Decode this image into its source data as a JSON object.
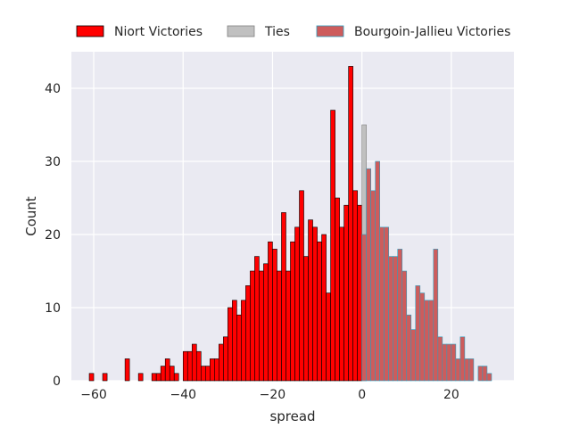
{
  "chart_data": {
    "type": "bar",
    "subtype": "histogram",
    "title": "",
    "xlabel": "spread",
    "ylabel": "Count",
    "xlim": [
      -65,
      34
    ],
    "ylim": [
      0,
      45
    ],
    "xticks": [
      -60,
      -40,
      -20,
      0,
      20
    ],
    "yticks": [
      0,
      10,
      20,
      30,
      40
    ],
    "grid": true,
    "legend_position": "top, outside plot, horizontal",
    "bin_width": 1,
    "series": [
      {
        "name": "Niort Victories",
        "color": "#ff0000",
        "edgecolor": "#000000",
        "bins": [
          [
            -61,
            1
          ],
          [
            -58,
            1
          ],
          [
            -53,
            3
          ],
          [
            -50,
            1
          ],
          [
            -47,
            1
          ],
          [
            -46,
            1
          ],
          [
            -45,
            2
          ],
          [
            -44,
            3
          ],
          [
            -43,
            2
          ],
          [
            -42,
            1
          ],
          [
            -40,
            4
          ],
          [
            -39,
            4
          ],
          [
            -38,
            5
          ],
          [
            -37,
            4
          ],
          [
            -36,
            2
          ],
          [
            -35,
            2
          ],
          [
            -34,
            3
          ],
          [
            -33,
            3
          ],
          [
            -32,
            5
          ],
          [
            -31,
            6
          ],
          [
            -30,
            10
          ],
          [
            -29,
            11
          ],
          [
            -28,
            9
          ],
          [
            -27,
            11
          ],
          [
            -26,
            13
          ],
          [
            -25,
            15
          ],
          [
            -24,
            17
          ],
          [
            -23,
            15
          ],
          [
            -22,
            16
          ],
          [
            -21,
            19
          ],
          [
            -20,
            18
          ],
          [
            -19,
            15
          ],
          [
            -18,
            23
          ],
          [
            -17,
            15
          ],
          [
            -16,
            19
          ],
          [
            -15,
            21
          ],
          [
            -14,
            26
          ],
          [
            -13,
            17
          ],
          [
            -12,
            22
          ],
          [
            -11,
            21
          ],
          [
            -10,
            19
          ],
          [
            -9,
            20
          ],
          [
            -8,
            12
          ],
          [
            -7,
            37
          ],
          [
            -6,
            25
          ],
          [
            -5,
            21
          ],
          [
            -4,
            24
          ],
          [
            -3,
            43
          ],
          [
            -2,
            26
          ],
          [
            -1,
            24
          ]
        ]
      },
      {
        "name": "Ties",
        "color": "#c0c0c0",
        "edgecolor": "#808080",
        "bins": [
          [
            0,
            35
          ]
        ]
      },
      {
        "name": "Bourgoin-Jallieu Victories",
        "color": "#cd5c5c",
        "edgecolor": "#2b9fbf",
        "bins": [
          [
            0,
            20
          ],
          [
            1,
            29
          ],
          [
            2,
            26
          ],
          [
            3,
            30
          ],
          [
            4,
            21
          ],
          [
            5,
            21
          ],
          [
            6,
            17
          ],
          [
            7,
            17
          ],
          [
            8,
            18
          ],
          [
            9,
            15
          ],
          [
            10,
            9
          ],
          [
            11,
            7
          ],
          [
            12,
            13
          ],
          [
            13,
            12
          ],
          [
            14,
            11
          ],
          [
            15,
            11
          ],
          [
            16,
            18
          ],
          [
            17,
            6
          ],
          [
            18,
            5
          ],
          [
            19,
            5
          ],
          [
            20,
            5
          ],
          [
            21,
            3
          ],
          [
            22,
            6
          ],
          [
            23,
            3
          ],
          [
            24,
            3
          ],
          [
            26,
            2
          ],
          [
            27,
            2
          ],
          [
            28,
            1
          ]
        ]
      }
    ]
  }
}
